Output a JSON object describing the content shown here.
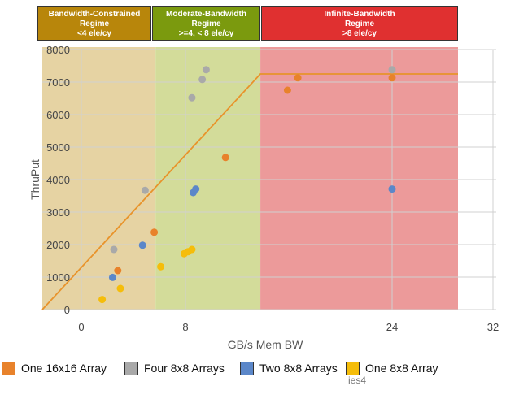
{
  "regimes": [
    {
      "line1": "Bandwidth-Constrained",
      "line2": "Regime",
      "line3": "<4 ele/cy",
      "color": "#b8860b"
    },
    {
      "line1": "Moderate-Bandwidth",
      "line2": "Regime",
      "line3": ">=4, < 8 ele/cy",
      "color": "#7b9a0e"
    },
    {
      "line1": "Infinite-Bandwidth",
      "line2": "Regime",
      "line3": ">8 ele/cy",
      "color": "#e03030"
    }
  ],
  "legend": [
    {
      "label": "One 16x16 Array",
      "color": "#e8822b"
    },
    {
      "label": "Four 8x8 Arrays",
      "color": "#a9a9a9"
    },
    {
      "label": "Two 8x8 Arrays",
      "color": "#5b87c9"
    },
    {
      "label": "One 8x8 Array",
      "color": "#f5bd0a"
    }
  ],
  "stray_text": "ies4",
  "chart_data": {
    "type": "scatter",
    "title": "",
    "xlabel": "GB/s Mem BW",
    "ylabel": "ThruPut",
    "x_ticks": [
      "0",
      "8",
      "24",
      "32"
    ],
    "y_ticks": [
      "0",
      "1000",
      "2000",
      "3000",
      "4000",
      "5000",
      "6000",
      "7000",
      "8000"
    ],
    "ylim": [
      0,
      8000
    ],
    "grid": true,
    "legend_position": "bottom",
    "regions": [
      {
        "name": "Bandwidth-Constrained Regime",
        "x_start": -3,
        "x_end": 5.7,
        "color": "#e6d3a3"
      },
      {
        "name": "Moderate-Bandwidth Regime",
        "x_start": 5.7,
        "x_end": 13.8,
        "color": "#d3dc9a"
      },
      {
        "name": "Infinite-Bandwidth Regime",
        "x_start": 13.8,
        "x_end": 29,
        "color": "#ec9a9a"
      }
    ],
    "roofline": {
      "color": "#e8932b",
      "points": [
        [
          -3,
          0
        ],
        [
          13.8,
          7250
        ],
        [
          29,
          7250
        ]
      ]
    },
    "series": [
      {
        "name": "One 16x16 Array",
        "color": "#e8822b",
        "points": [
          [
            2.8,
            1200
          ],
          [
            5.6,
            2380
          ],
          [
            11.1,
            4680
          ],
          [
            15.9,
            6750
          ],
          [
            16.7,
            7130
          ],
          [
            24,
            7130
          ]
        ]
      },
      {
        "name": "Four 8x8 Arrays",
        "color": "#a9a9a9",
        "points": [
          [
            2.5,
            1850
          ],
          [
            4.9,
            3670
          ],
          [
            8.5,
            6520
          ],
          [
            9.3,
            7080
          ],
          [
            9.6,
            7380
          ],
          [
            24,
            7380
          ]
        ]
      },
      {
        "name": "Two 8x8 Arrays",
        "color": "#5b87c9",
        "points": [
          [
            2.4,
            990
          ],
          [
            4.7,
            1980
          ],
          [
            8.6,
            3600
          ],
          [
            8.8,
            3710
          ],
          [
            24,
            3710
          ]
        ]
      },
      {
        "name": "One 8x8 Array",
        "color": "#f5bd0a",
        "points": [
          [
            1.6,
            310
          ],
          [
            3.0,
            650
          ],
          [
            6.1,
            1320
          ],
          [
            7.9,
            1720
          ],
          [
            8.2,
            1780
          ],
          [
            8.5,
            1850
          ]
        ]
      }
    ]
  }
}
